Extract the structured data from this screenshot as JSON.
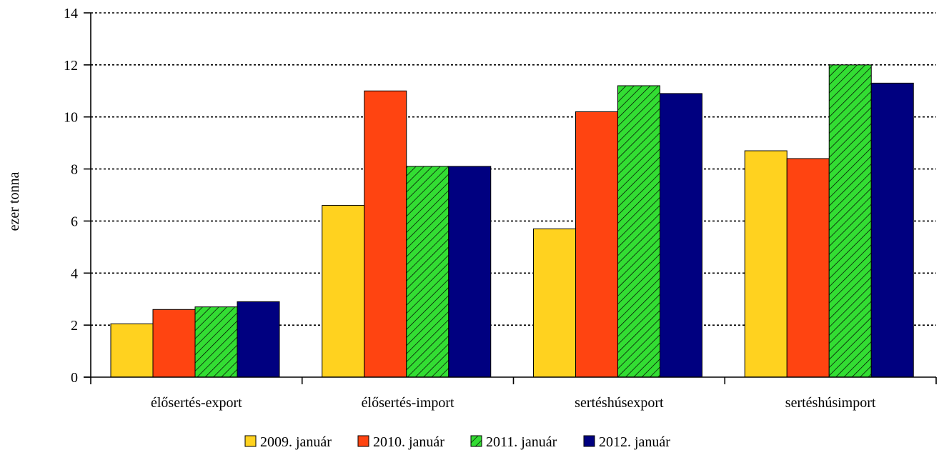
{
  "chart_data": {
    "type": "bar",
    "title": "",
    "xlabel": "",
    "ylabel": "ezer tonna",
    "ylim": [
      0,
      14
    ],
    "yticks": [
      0,
      2,
      4,
      6,
      8,
      10,
      12,
      14
    ],
    "grid": true,
    "legend_position": "bottom",
    "categories": [
      "élősertés-export",
      "élősertés-import",
      "sertéshúsexport",
      "sertéshúsimport"
    ],
    "series": [
      {
        "name": "2009. január",
        "color": "#FFD21F",
        "pattern": "solid",
        "values": [
          2.05,
          6.6,
          5.7,
          8.7
        ]
      },
      {
        "name": "2010. január",
        "color": "#FF4411",
        "pattern": "solid",
        "values": [
          2.6,
          11.0,
          10.2,
          8.4
        ]
      },
      {
        "name": "2011. január",
        "color": "#33DD33",
        "pattern": "diagonal-hatch",
        "values": [
          2.7,
          8.1,
          11.2,
          12.0
        ]
      },
      {
        "name": "2012. január",
        "color": "#000080",
        "pattern": "solid",
        "values": [
          2.9,
          8.1,
          10.9,
          11.3
        ]
      }
    ]
  }
}
